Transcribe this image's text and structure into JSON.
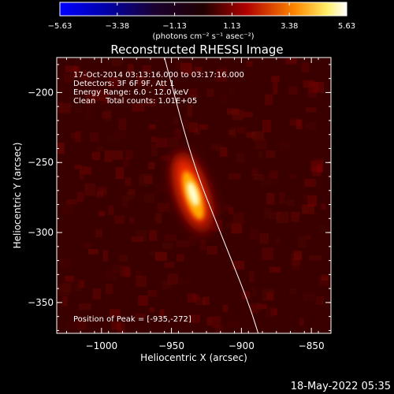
{
  "chart_data": {
    "type": "heatmap",
    "title": "Reconstructed RHESSI Image",
    "xlabel": "Heliocentric X (arcsec)",
    "ylabel": "Heliocentric Y (arcsec)",
    "xlim": [
      -1032,
      -836
    ],
    "ylim": [
      -372,
      -175
    ],
    "x_ticks": [
      -1000,
      -950,
      -900,
      -850
    ],
    "y_ticks": [
      -200,
      -250,
      -300,
      -350
    ],
    "x_tick_labels": [
      "−1000",
      "−950",
      "−900",
      "−850"
    ],
    "y_tick_labels": [
      "−200",
      "−250",
      "−300",
      "−350"
    ],
    "colorbar": {
      "range": [
        -5.63,
        5.63
      ],
      "tick_labels": [
        "−5.63",
        "−3.38",
        "−1.13",
        "1.13",
        "3.38",
        "5.63"
      ],
      "unit_label": "(photons cm⁻² s⁻¹ asec⁻²)",
      "colormap": "blue-black-red-yellow-white"
    },
    "source": {
      "peak_x": -935,
      "peak_y": -272,
      "shape": "elongated ridge"
    },
    "limb_curve": [
      [
        -955,
        -175
      ],
      [
        -935,
        -250
      ],
      [
        -915,
        -300
      ],
      [
        -895,
        -350
      ],
      [
        -888,
        -372
      ]
    ],
    "annotations": [
      "17-Oct-2014 03:13:16.000 to 03:17:16.000",
      "Detectors: 3F 6F 9F, Att 1",
      "Energy Range: 6.0 - 12.0 keV",
      "Clean    Total counts: 1.01E+05"
    ],
    "peak_label": "Position of Peak = [-935,-272]",
    "grid": false
  },
  "footer": {
    "timestamp": "18-May-2022 05:35"
  }
}
